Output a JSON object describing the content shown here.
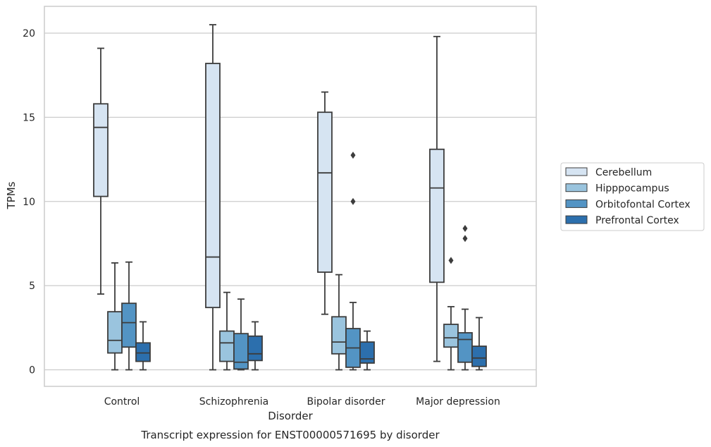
{
  "chart_data": {
    "type": "box",
    "title": "",
    "caption": "Transcript expression for ENST00000571695 by disorder",
    "xlabel": "Disorder",
    "ylabel": "TPMs",
    "ylim": [
      -1,
      21.6
    ],
    "yticks": [
      0,
      5,
      10,
      15,
      20
    ],
    "grid": "y",
    "legend_position": "right",
    "categories": [
      "Control",
      "Schizophrenia",
      "Bipolar disorder",
      "Major depression"
    ],
    "series": [
      {
        "name": "Cerebellum",
        "color": "#d6e4f2",
        "boxes": [
          {
            "whislo": 4.5,
            "q1": 10.3,
            "med": 14.4,
            "q3": 15.8,
            "whishi": 19.1,
            "fliers": []
          },
          {
            "whislo": 0.0,
            "q1": 3.7,
            "med": 6.7,
            "q3": 18.2,
            "whishi": 20.5,
            "fliers": []
          },
          {
            "whislo": 3.3,
            "q1": 5.8,
            "med": 11.7,
            "q3": 15.3,
            "whishi": 16.5,
            "fliers": []
          },
          {
            "whislo": 0.5,
            "q1": 5.2,
            "med": 10.8,
            "q3": 13.1,
            "whishi": 19.8,
            "fliers": []
          }
        ]
      },
      {
        "name": "Hipppocampus",
        "color": "#9ac4de",
        "boxes": [
          {
            "whislo": 0.0,
            "q1": 1.0,
            "med": 1.75,
            "q3": 3.45,
            "whishi": 6.35,
            "fliers": []
          },
          {
            "whislo": 0.0,
            "q1": 0.5,
            "med": 1.6,
            "q3": 2.3,
            "whishi": 4.6,
            "fliers": []
          },
          {
            "whislo": 0.0,
            "q1": 0.95,
            "med": 1.65,
            "q3": 3.15,
            "whishi": 5.65,
            "fliers": []
          },
          {
            "whislo": 0.0,
            "q1": 1.35,
            "med": 1.9,
            "q3": 2.7,
            "whishi": 3.75,
            "fliers": [
              6.5
            ]
          }
        ]
      },
      {
        "name": "Orbitofontal Cortex",
        "color": "#5394c4",
        "boxes": [
          {
            "whislo": 0.0,
            "q1": 1.35,
            "med": 2.8,
            "q3": 3.95,
            "whishi": 6.4,
            "fliers": []
          },
          {
            "whislo": 0.0,
            "q1": 0.05,
            "med": 0.45,
            "q3": 2.15,
            "whishi": 4.2,
            "fliers": []
          },
          {
            "whislo": 0.0,
            "q1": 0.15,
            "med": 1.3,
            "q3": 2.45,
            "whishi": 4.0,
            "fliers": [
              10.0,
              12.75
            ]
          },
          {
            "whislo": 0.0,
            "q1": 0.45,
            "med": 1.8,
            "q3": 2.2,
            "whishi": 3.6,
            "fliers": [
              7.8,
              8.4
            ]
          }
        ]
      },
      {
        "name": "Prefrontal Cortex",
        "color": "#2c6fad",
        "boxes": [
          {
            "whislo": 0.0,
            "q1": 0.5,
            "med": 1.0,
            "q3": 1.6,
            "whishi": 2.85,
            "fliers": []
          },
          {
            "whislo": 0.0,
            "q1": 0.55,
            "med": 0.95,
            "q3": 2.0,
            "whishi": 2.85,
            "fliers": []
          },
          {
            "whislo": 0.0,
            "q1": 0.4,
            "med": 0.65,
            "q3": 1.65,
            "whishi": 2.3,
            "fliers": []
          },
          {
            "whislo": 0.0,
            "q1": 0.2,
            "med": 0.7,
            "q3": 1.4,
            "whishi": 3.1,
            "fliers": []
          }
        ]
      }
    ]
  }
}
